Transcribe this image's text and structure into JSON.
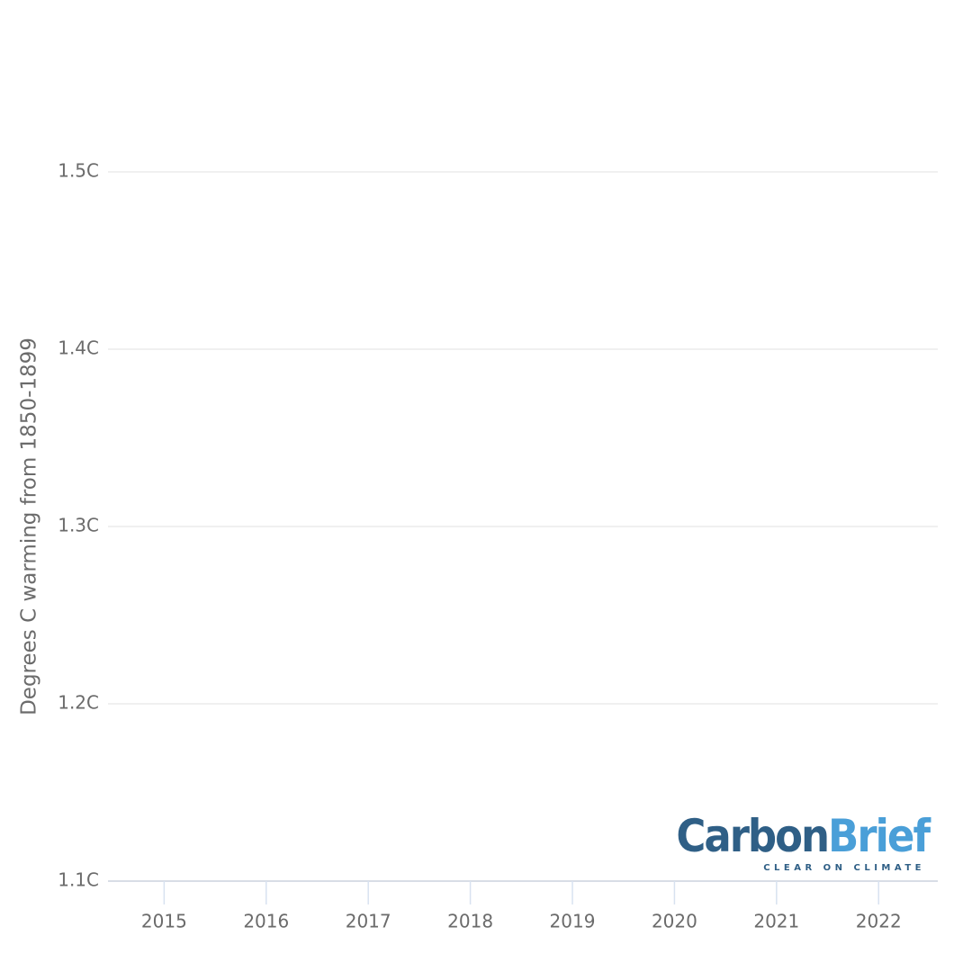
{
  "chart_data": {
    "type": "line",
    "ylabel": "Degrees C warming from 1850-1899",
    "xlim": [
      2014.45,
      2022.58
    ],
    "xticks": [
      2015,
      2016,
      2017,
      2018,
      2019,
      2020,
      2021,
      2022
    ],
    "ylim": [
      1.1,
      1.5
    ],
    "yticks": [
      {
        "value": 1.1,
        "label": "1.1C"
      },
      {
        "value": 1.2,
        "label": "1.2C"
      },
      {
        "value": 1.3,
        "label": "1.3C"
      },
      {
        "value": 1.4,
        "label": "1.4C"
      },
      {
        "value": 1.5,
        "label": "1.5C"
      }
    ],
    "grid": true,
    "series": []
  },
  "logo": {
    "primary": "Carbon",
    "secondary": "Brief",
    "tagline": "CLEAR ON CLIMATE"
  }
}
